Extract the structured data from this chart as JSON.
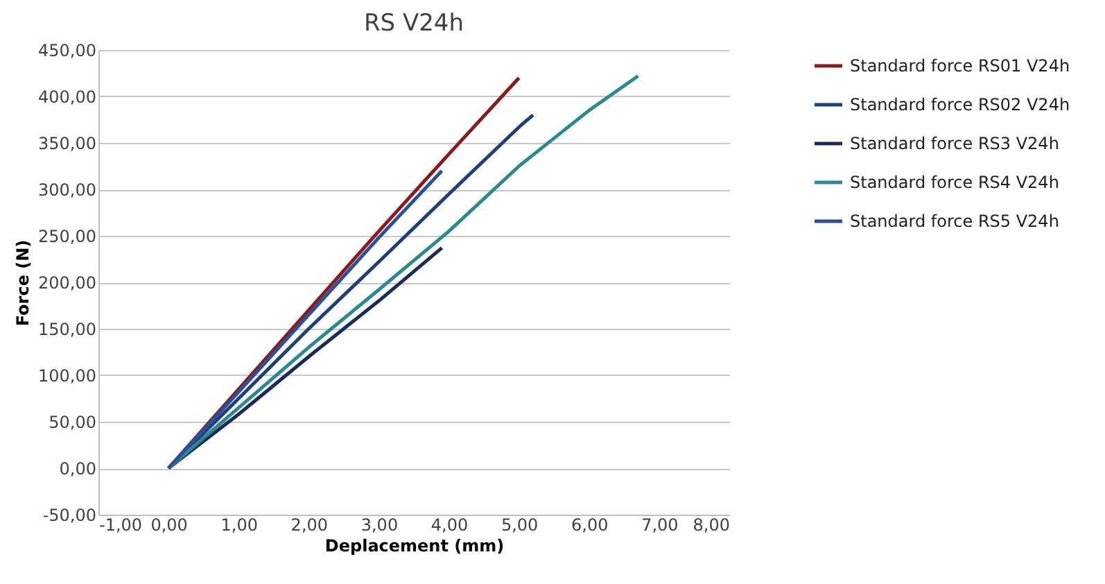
{
  "chart_data": {
    "type": "line",
    "title": "RS V24h",
    "xlabel": "Deplacement (mm)",
    "ylabel": "Force (N)",
    "xlim": [
      -1,
      8
    ],
    "xticks": [
      {
        "value": -1,
        "label": "-1,00"
      },
      {
        "value": 0,
        "label": "0,00"
      },
      {
        "value": 1,
        "label": "1,00"
      },
      {
        "value": 2,
        "label": "2,00"
      },
      {
        "value": 3,
        "label": "3,00"
      },
      {
        "value": 4,
        "label": "4,00"
      },
      {
        "value": 5,
        "label": "5,00"
      },
      {
        "value": 6,
        "label": "6,00"
      },
      {
        "value": 7,
        "label": "7,00"
      },
      {
        "value": 8,
        "label": "8,00"
      }
    ],
    "ylim": [
      -50,
      450
    ],
    "yticks": [
      {
        "value": -50,
        "label": "-50,00"
      },
      {
        "value": 0,
        "label": "0,00"
      },
      {
        "value": 50,
        "label": "50,00"
      },
      {
        "value": 100,
        "label": "100,00"
      },
      {
        "value": 150,
        "label": "150,00"
      },
      {
        "value": 200,
        "label": "200,00"
      },
      {
        "value": 250,
        "label": "250,00"
      },
      {
        "value": 300,
        "label": "300,00"
      },
      {
        "value": 350,
        "label": "350,00"
      },
      {
        "value": 400,
        "label": "400,00"
      },
      {
        "value": 450,
        "label": "450,00"
      }
    ],
    "grid": "y",
    "legend": "right",
    "marker": "none",
    "series": [
      {
        "name": "Standard force RS01 V24h",
        "color": "#8b1a1a",
        "x": [
          0,
          1,
          2,
          3,
          4,
          5
        ],
        "values": [
          0,
          85,
          170,
          255,
          338,
          420
        ]
      },
      {
        "name": "Standard force RS02 V24h",
        "color": "#1f3f7a",
        "x": [
          0,
          1,
          2,
          3,
          4,
          5,
          5.2
        ],
        "values": [
          0,
          75,
          150,
          222,
          295,
          367,
          380
        ]
      },
      {
        "name": "Standard force RS3 V24h",
        "color": "#1a2a5a",
        "x": [
          0,
          1,
          2,
          3,
          3.9
        ],
        "values": [
          0,
          58,
          120,
          180,
          237
        ]
      },
      {
        "name": "Standard force RS4 V24h",
        "color": "#2a8a8f",
        "x": [
          0,
          1,
          2,
          3,
          4,
          5,
          6,
          6.7
        ],
        "values": [
          0,
          65,
          130,
          192,
          255,
          325,
          385,
          422
        ]
      },
      {
        "name": "Standard force RS5 V24h",
        "color": "#2b4f9a",
        "x": [
          0,
          1,
          2,
          3,
          3.9
        ],
        "values": [
          0,
          82,
          165,
          248,
          320
        ]
      }
    ]
  }
}
